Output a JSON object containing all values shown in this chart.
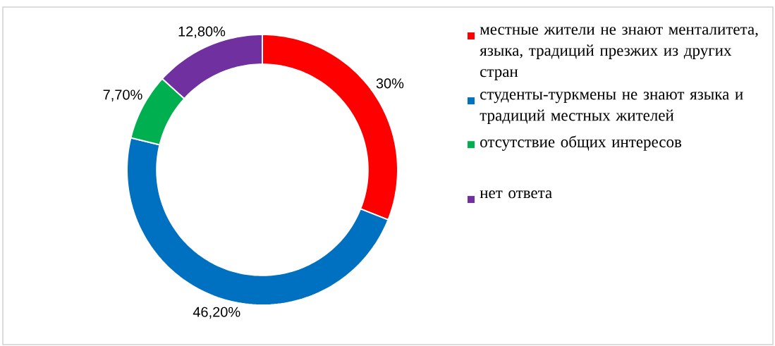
{
  "chart_data": {
    "type": "donut",
    "categories": [
      "местные жители не знают менталитета, языка, традиций презжих из других стран",
      "студенты-туркмены не знают языка и традиций местных жителей",
      "отсутствие общих интересов",
      "нет ответа"
    ],
    "values": [
      30,
      46.2,
      7.7,
      12.8
    ],
    "colors": [
      "#ff0000",
      "#0070c0",
      "#00b050",
      "#7030a0"
    ],
    "value_labels": [
      "30%",
      "46,20%",
      "7,70%",
      "12,80%"
    ],
    "legend": "right"
  }
}
